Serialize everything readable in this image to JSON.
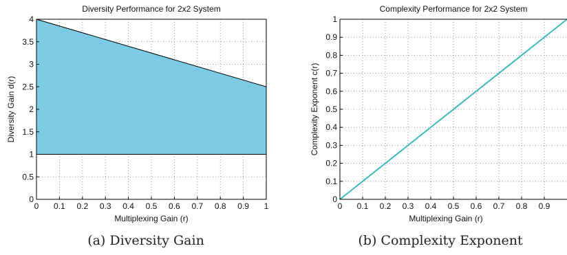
{
  "captions": {
    "a": "(a) Diversity Gain",
    "b": "(b) Complexity Exponent"
  },
  "chart_data": [
    {
      "type": "area",
      "title": "Diversity Performance for 2x2 System",
      "xlabel": "Multiplexing Gain (r)",
      "ylabel": "Diversity Gain d(r)",
      "xlim": [
        0,
        1
      ],
      "ylim": [
        0,
        4
      ],
      "xticks": [
        "0",
        "0.1",
        "0.2",
        "0.3",
        "0.4",
        "0.5",
        "0.6",
        "0.7",
        "0.8",
        "0.9",
        "1"
      ],
      "yticks": [
        "0",
        "0.5",
        "1",
        "1.5",
        "2",
        "2.5",
        "3",
        "3.5",
        "4"
      ],
      "grid": true,
      "fill_color": "#7ccae4",
      "series": [
        {
          "x": [
            0,
            1
          ],
          "upper": [
            4,
            2.5
          ],
          "lower": [
            1,
            1
          ]
        }
      ]
    },
    {
      "type": "line",
      "title": "Complexity Performance for 2x2 System",
      "xlabel": "Multiplexing Gain (r)",
      "ylabel": "Complexity Exponent c(r)",
      "xlim": [
        0,
        1
      ],
      "ylim": [
        0,
        1
      ],
      "xticks": [
        "0",
        "0.1",
        "0.2",
        "0.3",
        "0.4",
        "0.5",
        "0.6",
        "0.7",
        "0.8",
        "0.9"
      ],
      "yticks": [
        "0",
        "0.1",
        "0.2",
        "0.3",
        "0.4",
        "0.5",
        "0.6",
        "0.7",
        "0.8",
        "0.9",
        "1"
      ],
      "grid": true,
      "line_color": "#3fb8bd",
      "series": [
        {
          "x": [
            0,
            1
          ],
          "y": [
            0,
            1
          ]
        }
      ]
    }
  ]
}
